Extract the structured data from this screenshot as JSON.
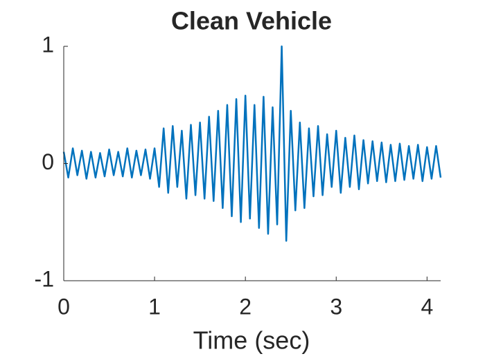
{
  "chart_data": {
    "type": "line",
    "title": "Clean Vehicle",
    "xlabel": "Time (sec)",
    "xlim": [
      0,
      4.15
    ],
    "ylim": [
      -1,
      1
    ],
    "xticks": [
      0,
      1,
      2,
      3,
      4
    ],
    "yticks": [
      -1,
      0,
      1
    ],
    "series": [
      {
        "color": "#0072bd",
        "x": [
          0,
          0.05,
          0.1,
          0.15,
          0.2,
          0.25,
          0.3,
          0.35,
          0.4,
          0.45,
          0.5,
          0.55,
          0.6,
          0.65,
          0.7,
          0.75,
          0.8,
          0.85,
          0.9,
          0.95,
          1.0,
          1.05,
          1.1,
          1.15,
          1.2,
          1.25,
          1.3,
          1.35,
          1.4,
          1.45,
          1.5,
          1.55,
          1.6,
          1.65,
          1.7,
          1.75,
          1.8,
          1.85,
          1.9,
          1.95,
          2.0,
          2.05,
          2.1,
          2.15,
          2.2,
          2.25,
          2.3,
          2.35,
          2.4,
          2.45,
          2.5,
          2.55,
          2.6,
          2.65,
          2.7,
          2.75,
          2.8,
          2.85,
          2.9,
          2.95,
          3.0,
          3.05,
          3.1,
          3.15,
          3.2,
          3.25,
          3.3,
          3.35,
          3.4,
          3.45,
          3.5,
          3.55,
          3.6,
          3.65,
          3.7,
          3.75,
          3.8,
          3.85,
          3.9,
          3.95,
          4.0,
          4.05,
          4.1,
          4.15
        ],
        "values": [
          0.1,
          -0.12,
          0.13,
          -0.1,
          0.11,
          -0.13,
          0.1,
          -0.12,
          0.09,
          -0.11,
          0.12,
          -0.1,
          0.1,
          -0.11,
          0.13,
          -0.12,
          0.11,
          -0.1,
          0.12,
          -0.13,
          0.13,
          -0.2,
          0.3,
          -0.25,
          0.32,
          -0.2,
          0.28,
          -0.3,
          0.33,
          -0.27,
          0.35,
          -0.3,
          0.4,
          -0.32,
          0.45,
          -0.38,
          0.5,
          -0.45,
          0.55,
          -0.5,
          0.58,
          -0.47,
          0.5,
          -0.55,
          0.57,
          -0.6,
          0.48,
          -0.52,
          1.0,
          -0.66,
          0.45,
          -0.4,
          0.35,
          -0.38,
          0.3,
          -0.28,
          0.32,
          -0.27,
          0.25,
          -0.2,
          0.28,
          -0.25,
          0.22,
          -0.2,
          0.24,
          -0.22,
          0.2,
          -0.17,
          0.19,
          -0.15,
          0.18,
          -0.16,
          0.16,
          -0.15,
          0.17,
          -0.14,
          0.15,
          -0.13,
          0.16,
          -0.15,
          0.14,
          -0.13,
          0.15,
          -0.12
        ]
      }
    ]
  }
}
